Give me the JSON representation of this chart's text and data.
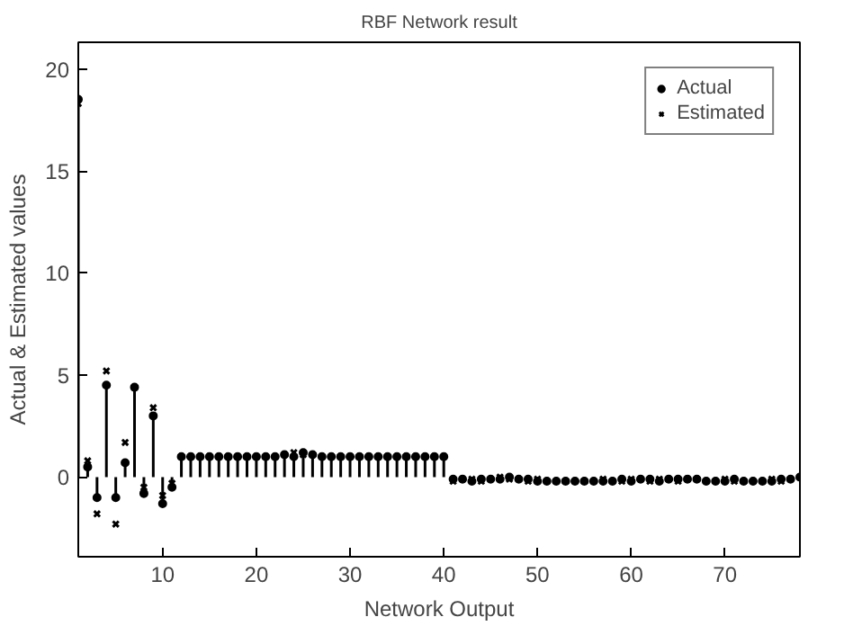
{
  "chart_data": {
    "type": "lollipop",
    "title": "RBF Network result",
    "xlabel": "Network Output",
    "ylabel": "Actual & Estimated values",
    "x": [
      1,
      2,
      3,
      4,
      5,
      6,
      7,
      8,
      9,
      10,
      11,
      12,
      13,
      14,
      15,
      16,
      17,
      18,
      19,
      20,
      21,
      22,
      23,
      24,
      25,
      26,
      27,
      28,
      29,
      30,
      31,
      32,
      33,
      34,
      35,
      36,
      37,
      38,
      39,
      40,
      41,
      42,
      43,
      44,
      45,
      46,
      47,
      48,
      49,
      50,
      51,
      52,
      53,
      54,
      55,
      56,
      57,
      58,
      59,
      60,
      61,
      62,
      63,
      64,
      65,
      66,
      67,
      68,
      69,
      70,
      71,
      72,
      73,
      74,
      75,
      76,
      77,
      78
    ],
    "series": [
      {
        "name": "Actual",
        "type": "lollipop",
        "marker": "circle",
        "color": "#000000",
        "values": [
          18.5,
          0.5,
          -1.0,
          4.5,
          -1.0,
          0.7,
          4.4,
          -0.8,
          3.0,
          -1.3,
          -0.5,
          1.0,
          1.0,
          1.0,
          1.0,
          1.0,
          1.0,
          1.0,
          1.0,
          1.0,
          1.0,
          1.0,
          1.1,
          1.0,
          1.2,
          1.1,
          1.0,
          1.0,
          1.0,
          1.0,
          1.0,
          1.0,
          1.0,
          1.0,
          1.0,
          1.0,
          1.0,
          1.0,
          1.0,
          1.0,
          -0.1,
          -0.1,
          -0.2,
          -0.1,
          -0.1,
          -0.1,
          0.0,
          -0.1,
          -0.1,
          -0.2,
          -0.2,
          -0.2,
          -0.2,
          -0.2,
          -0.2,
          -0.2,
          -0.2,
          -0.2,
          -0.1,
          -0.2,
          -0.1,
          -0.1,
          -0.2,
          -0.1,
          -0.1,
          -0.1,
          -0.1,
          -0.2,
          -0.2,
          -0.2,
          -0.1,
          -0.2,
          -0.2,
          -0.2,
          -0.2,
          -0.1,
          -0.1,
          0.0
        ]
      },
      {
        "name": "Estimated",
        "type": "scatter",
        "marker": "cross",
        "color": "#000000",
        "values": [
          18.3,
          0.8,
          -1.8,
          5.2,
          -2.3,
          1.7,
          4.4,
          -0.5,
          3.4,
          -0.9,
          -0.3,
          1.0,
          1.0,
          1.0,
          1.0,
          1.0,
          1.0,
          1.0,
          1.0,
          1.0,
          1.0,
          1.0,
          1.1,
          1.2,
          1.1,
          1.1,
          1.0,
          1.0,
          1.0,
          1.0,
          1.0,
          1.0,
          1.0,
          1.0,
          1.0,
          1.0,
          1.0,
          1.0,
          1.0,
          1.0,
          -0.2,
          -0.1,
          -0.1,
          -0.2,
          -0.1,
          0.0,
          -0.1,
          -0.1,
          -0.2,
          -0.1,
          -0.2,
          -0.2,
          -0.2,
          -0.2,
          -0.2,
          -0.2,
          -0.1,
          -0.2,
          -0.2,
          -0.1,
          -0.1,
          -0.2,
          -0.1,
          -0.1,
          -0.2,
          -0.1,
          -0.1,
          -0.2,
          -0.2,
          -0.1,
          -0.2,
          -0.2,
          -0.2,
          -0.2,
          -0.1,
          -0.2,
          -0.1,
          0.0
        ]
      }
    ],
    "xlim": [
      1,
      78
    ],
    "ylim": [
      -3.9,
      21.3
    ],
    "xticks": [
      10,
      20,
      30,
      40,
      50,
      60,
      70
    ],
    "yticks": [
      0,
      5,
      10,
      15,
      20
    ],
    "grid": false,
    "legend": "top right"
  }
}
